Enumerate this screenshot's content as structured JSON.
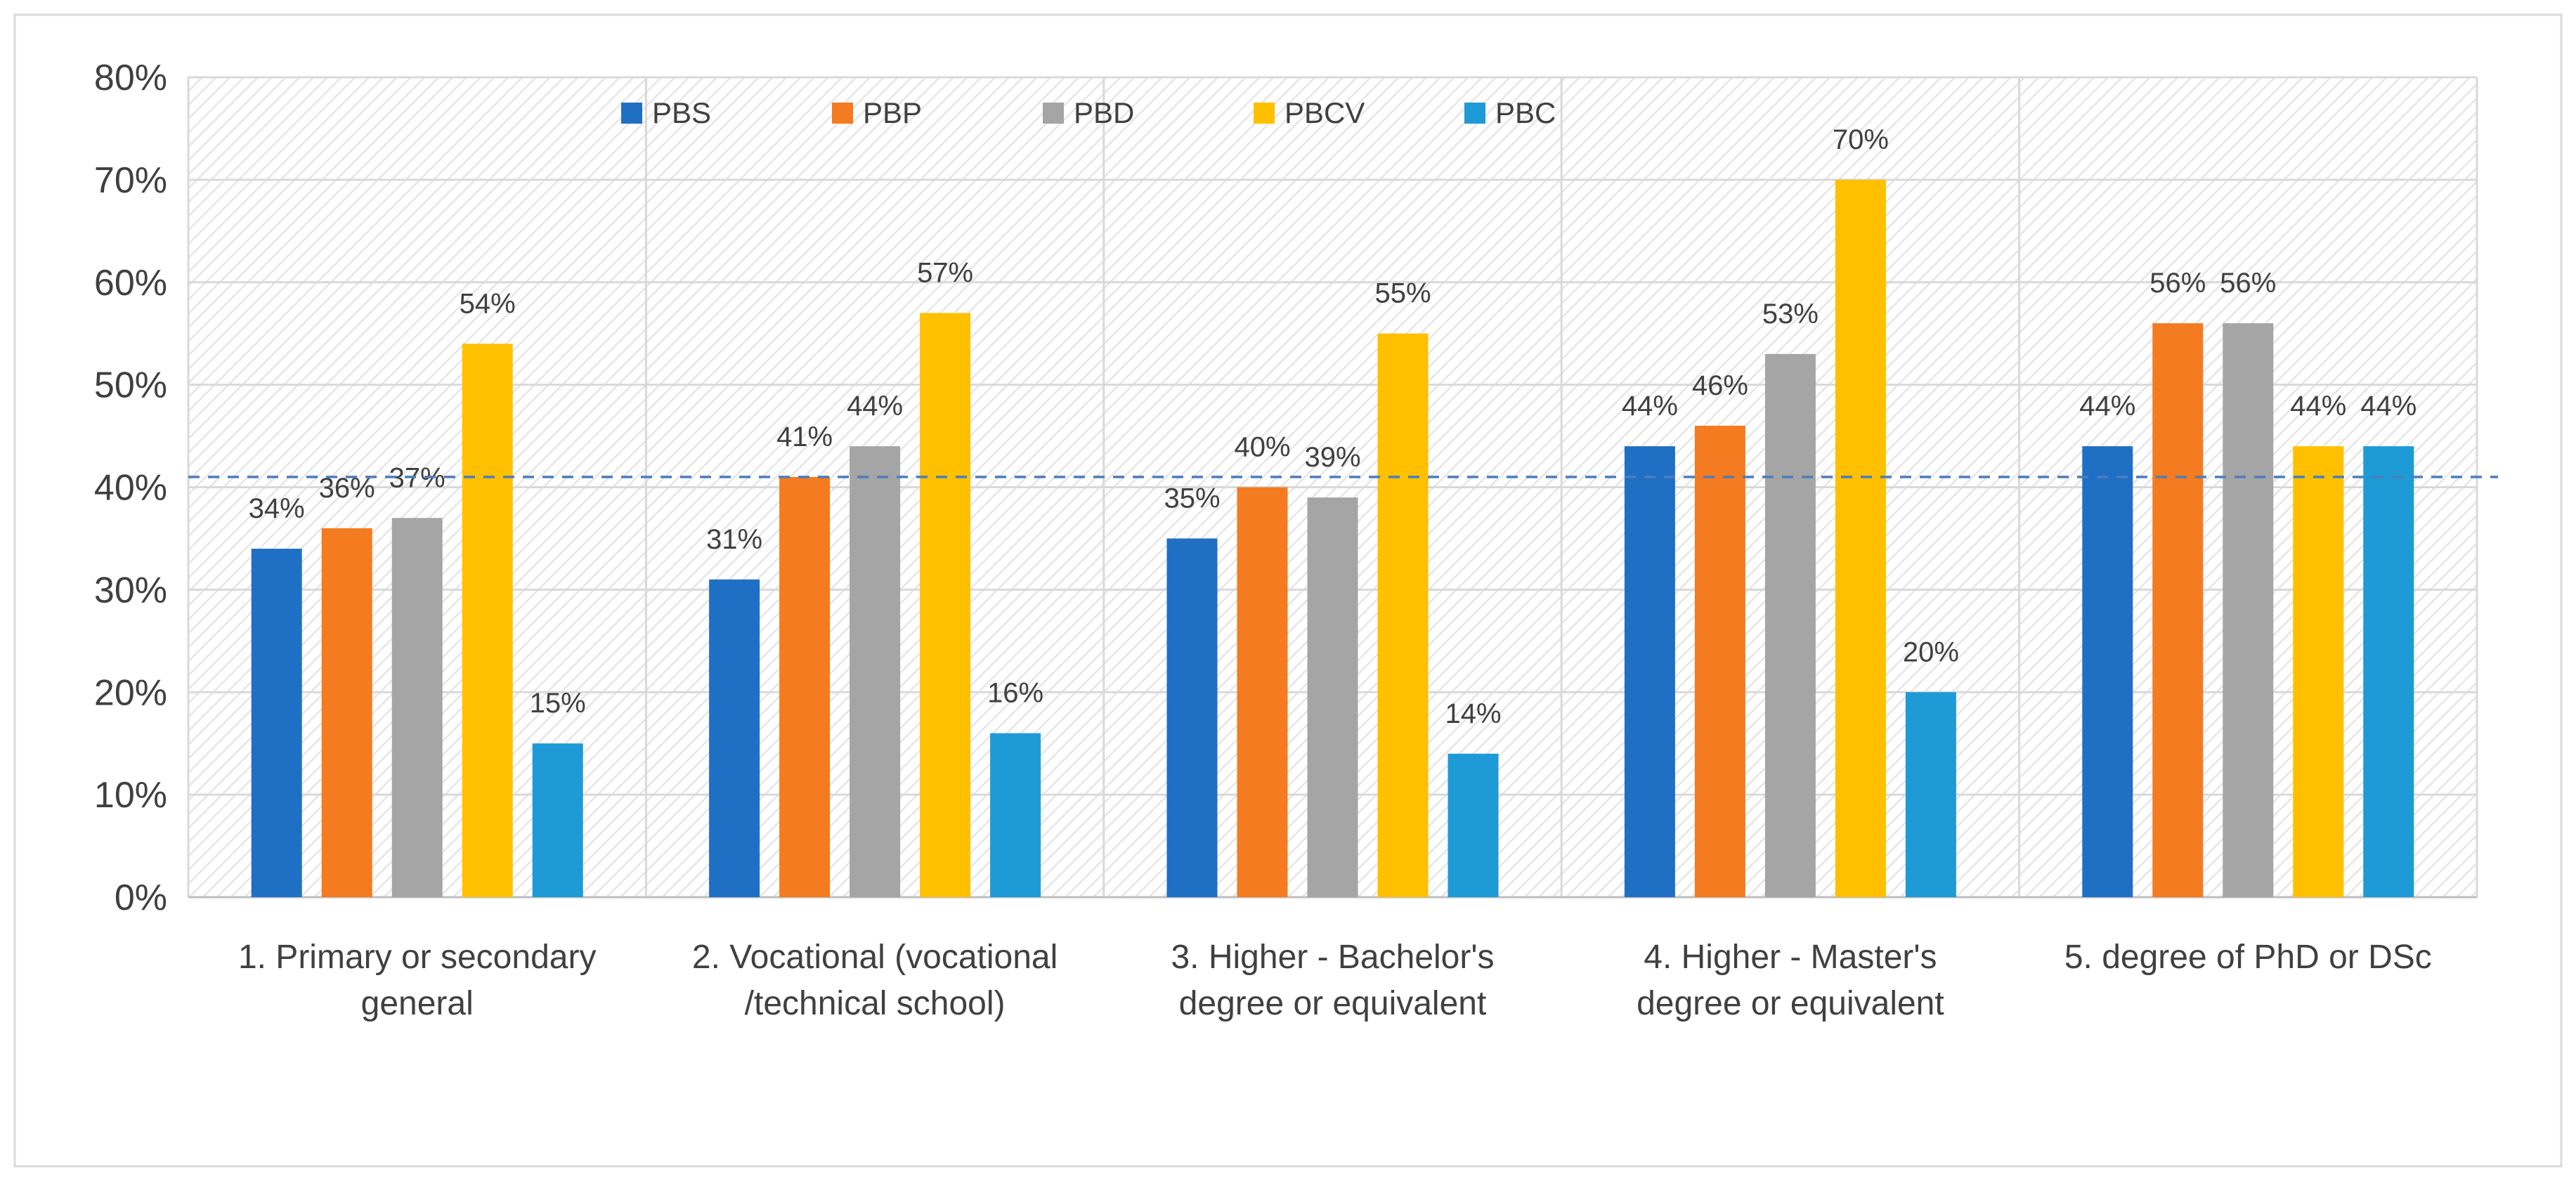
{
  "chart_data": {
    "type": "bar",
    "title": "",
    "xlabel": "",
    "ylabel": "",
    "ylim": [
      0,
      80
    ],
    "y_ticks": [
      "0%",
      "10%",
      "20%",
      "30%",
      "40%",
      "50%",
      "60%",
      "70%",
      "80%"
    ],
    "grid": true,
    "legend_position": "top",
    "categories": [
      [
        "1. Primary or secondary",
        "general"
      ],
      [
        "2. Vocational (vocational",
        "/technical school)"
      ],
      [
        "3. Higher - Bachelor's",
        "degree or equivalent"
      ],
      [
        "4. Higher - Master's",
        "degree or equivalent"
      ],
      [
        "5. degree of PhD or DSc"
      ]
    ],
    "series": [
      {
        "name": "PBS",
        "color": "#1f6fc5",
        "values": [
          34,
          31,
          35,
          44,
          44
        ],
        "labels": [
          "34%",
          "31%",
          "35%",
          "44%",
          "44%"
        ]
      },
      {
        "name": "PBP",
        "color": "#f47b20",
        "values": [
          36,
          41,
          40,
          46,
          56
        ],
        "labels": [
          "36%",
          "41%",
          "40%",
          "46%",
          "56%"
        ]
      },
      {
        "name": "PBD",
        "color": "#a5a5a5",
        "values": [
          37,
          44,
          39,
          53,
          56
        ],
        "labels": [
          "37%",
          "44%",
          "39%",
          "53%",
          "56%"
        ]
      },
      {
        "name": "PBCV",
        "color": "#ffc000",
        "values": [
          54,
          57,
          55,
          70,
          44
        ],
        "labels": [
          "54%",
          "57%",
          "55%",
          "70%",
          "44%"
        ]
      },
      {
        "name": "PBC",
        "color": "#1e9ad6",
        "values": [
          15,
          16,
          14,
          20,
          44
        ],
        "labels": [
          "15%",
          "16%",
          "14%",
          "20%",
          "44%"
        ]
      }
    ],
    "reference_line": {
      "value": 41,
      "style": "dashed",
      "color": "#4a7ebb"
    }
  }
}
